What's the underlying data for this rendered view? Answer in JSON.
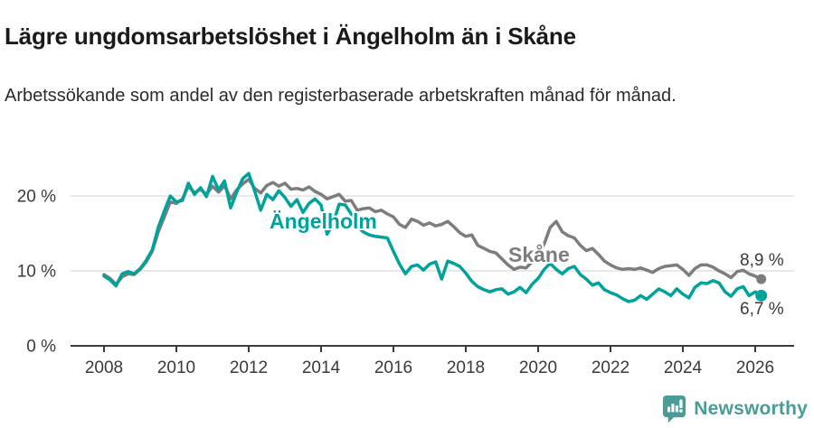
{
  "header": {
    "title": "Lägre ungdomsarbetslöshet i Ängelholm än i Skåne",
    "subtitle": "Arbetssökande som andel av den registerbaserade arbetskraften månad för månad."
  },
  "chart_data": {
    "type": "line",
    "title": "Lägre ungdomsarbetslöshet i Ängelholm än i Skåne",
    "subtitle": "Arbetssökande som andel av den registerbaserade arbetskraften månad för månad.",
    "unit": "%",
    "x_axis": {
      "start_year": 2008,
      "step_years": 0.166667,
      "tick_years": [
        2008,
        2010,
        2012,
        2014,
        2016,
        2018,
        2020,
        2022,
        2024,
        2026
      ],
      "tick_labels": [
        "2008",
        "2010",
        "2012",
        "2014",
        "2016",
        "2018",
        "2020",
        "2022",
        "2024",
        "2026"
      ],
      "range": [
        2007.1,
        2027.1
      ]
    },
    "y_axis": {
      "tick_values": [
        0,
        10,
        20
      ],
      "tick_labels": [
        "0 %",
        "10 %",
        "20 %"
      ],
      "ylim": [
        0,
        24
      ],
      "grid": true
    },
    "legend_position": "inline-labels",
    "series": [
      {
        "name": "Ängelholm",
        "color": "#00a39b",
        "end_label": "6,7 %",
        "end_value": 6.7,
        "values": [
          9.3,
          8.8,
          8.0,
          9.6,
          9.9,
          9.6,
          10.3,
          11.4,
          12.8,
          15.8,
          18.0,
          20.0,
          19.2,
          19.4,
          21.7,
          20.2,
          21.1,
          19.9,
          22.6,
          20.8,
          22.0,
          18.4,
          20.5,
          22.3,
          23.0,
          20.6,
          18.1,
          20.2,
          19.5,
          20.7,
          19.8,
          18.6,
          19.5,
          17.8,
          19.0,
          19.6,
          18.8,
          14.9,
          16.3,
          18.9,
          18.8,
          17.6,
          15.9,
          15.2,
          14.8,
          14.6,
          14.5,
          14.4,
          12.6,
          10.9,
          9.6,
          10.6,
          10.8,
          10.1,
          10.9,
          11.2,
          8.9,
          11.3,
          11.0,
          10.6,
          9.7,
          8.6,
          7.9,
          7.5,
          7.2,
          7.5,
          7.6,
          6.9,
          7.2,
          7.8,
          7.1,
          8.2,
          9.0,
          10.2,
          11.0,
          10.2,
          9.6,
          10.3,
          10.6,
          9.5,
          8.9,
          8.1,
          8.4,
          7.5,
          7.1,
          6.8,
          6.3,
          5.9,
          6.1,
          6.7,
          6.2,
          6.9,
          7.6,
          7.2,
          6.7,
          7.6,
          6.9,
          6.4,
          7.8,
          8.4,
          8.3,
          8.7,
          8.4,
          7.2,
          6.6,
          7.6,
          7.9,
          6.7,
          7.2,
          6.7
        ]
      },
      {
        "name": "Skåne",
        "color": "#7d7d7d",
        "end_label": "8,9 %",
        "end_value": 8.9,
        "values": [
          9.5,
          9.0,
          8.2,
          9.2,
          9.6,
          9.5,
          10.2,
          11.2,
          12.6,
          15.2,
          17.2,
          19.2,
          19.0,
          19.6,
          21.3,
          20.4,
          20.9,
          20.2,
          21.3,
          20.5,
          21.4,
          19.6,
          20.8,
          21.6,
          22.2,
          21.0,
          20.4,
          21.4,
          21.8,
          21.3,
          21.7,
          20.9,
          21.0,
          20.8,
          21.2,
          20.6,
          20.2,
          19.6,
          19.9,
          20.2,
          19.3,
          19.4,
          18.1,
          18.3,
          18.4,
          17.9,
          18.1,
          17.6,
          17.2,
          16.2,
          15.8,
          16.9,
          16.6,
          16.1,
          16.4,
          16.0,
          16.2,
          16.6,
          15.9,
          15.1,
          14.6,
          14.8,
          13.4,
          13.0,
          12.6,
          12.4,
          11.6,
          10.8,
          10.2,
          10.5,
          10.4,
          11.2,
          12.2,
          13.6,
          15.8,
          16.6,
          15.2,
          14.7,
          14.4,
          13.4,
          12.7,
          13.0,
          12.2,
          11.3,
          10.8,
          10.4,
          10.2,
          10.3,
          10.2,
          10.4,
          10.1,
          9.8,
          10.3,
          10.6,
          10.7,
          10.8,
          10.2,
          9.4,
          10.3,
          10.8,
          10.8,
          10.5,
          10.0,
          9.6,
          9.1,
          9.9,
          10.1,
          9.6,
          9.3,
          8.9
        ]
      }
    ]
  },
  "footer": {
    "brand": "Newsworthy"
  },
  "colors": {
    "axis": "#3a3a3a",
    "grid": "#dcdcdc",
    "title_text": "#1a1a1a",
    "body_text": "#2b2b2b",
    "logo": "#4a9c96",
    "background": "#ffffff"
  }
}
